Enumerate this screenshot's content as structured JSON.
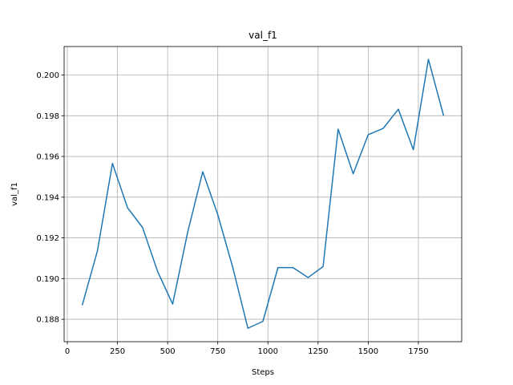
{
  "chart_data": {
    "type": "line",
    "title": "val_f1",
    "xlabel": "Steps",
    "ylabel": "val_f1",
    "xlim": [
      -16,
      1966
    ],
    "ylim": [
      0.1869,
      0.2014
    ],
    "grid": true,
    "legend": "none",
    "x_ticks": [
      0,
      250,
      500,
      750,
      1000,
      1250,
      1500,
      1750
    ],
    "x_tick_labels": [
      "0",
      "250",
      "500",
      "750",
      "1000",
      "1250",
      "1500",
      "1750"
    ],
    "y_ticks": [
      0.188,
      0.19,
      0.192,
      0.194,
      0.196,
      0.198,
      0.2
    ],
    "y_tick_labels": [
      "0.188",
      "0.190",
      "0.192",
      "0.194",
      "0.196",
      "0.198",
      "0.200"
    ],
    "colors": {
      "line": "#1f77b4",
      "grid": "#b0b0b0",
      "axis": "#000000"
    },
    "series": [
      {
        "x": [
          75,
          150,
          225,
          300,
          375,
          450,
          525,
          600,
          675,
          750,
          825,
          900,
          975,
          1050,
          1125,
          1200,
          1275,
          1350,
          1425,
          1500,
          1575,
          1650,
          1725,
          1800,
          1875
        ],
        "values": [
          0.18872,
          0.19136,
          0.19566,
          0.19348,
          0.19251,
          0.19035,
          0.18875,
          0.19228,
          0.19525,
          0.19314,
          0.19054,
          0.18756,
          0.1879,
          0.19054,
          0.19054,
          0.19005,
          0.19059,
          0.19734,
          0.19515,
          0.19707,
          0.19738,
          0.19832,
          0.19633,
          0.20077,
          0.19803
        ]
      }
    ]
  }
}
